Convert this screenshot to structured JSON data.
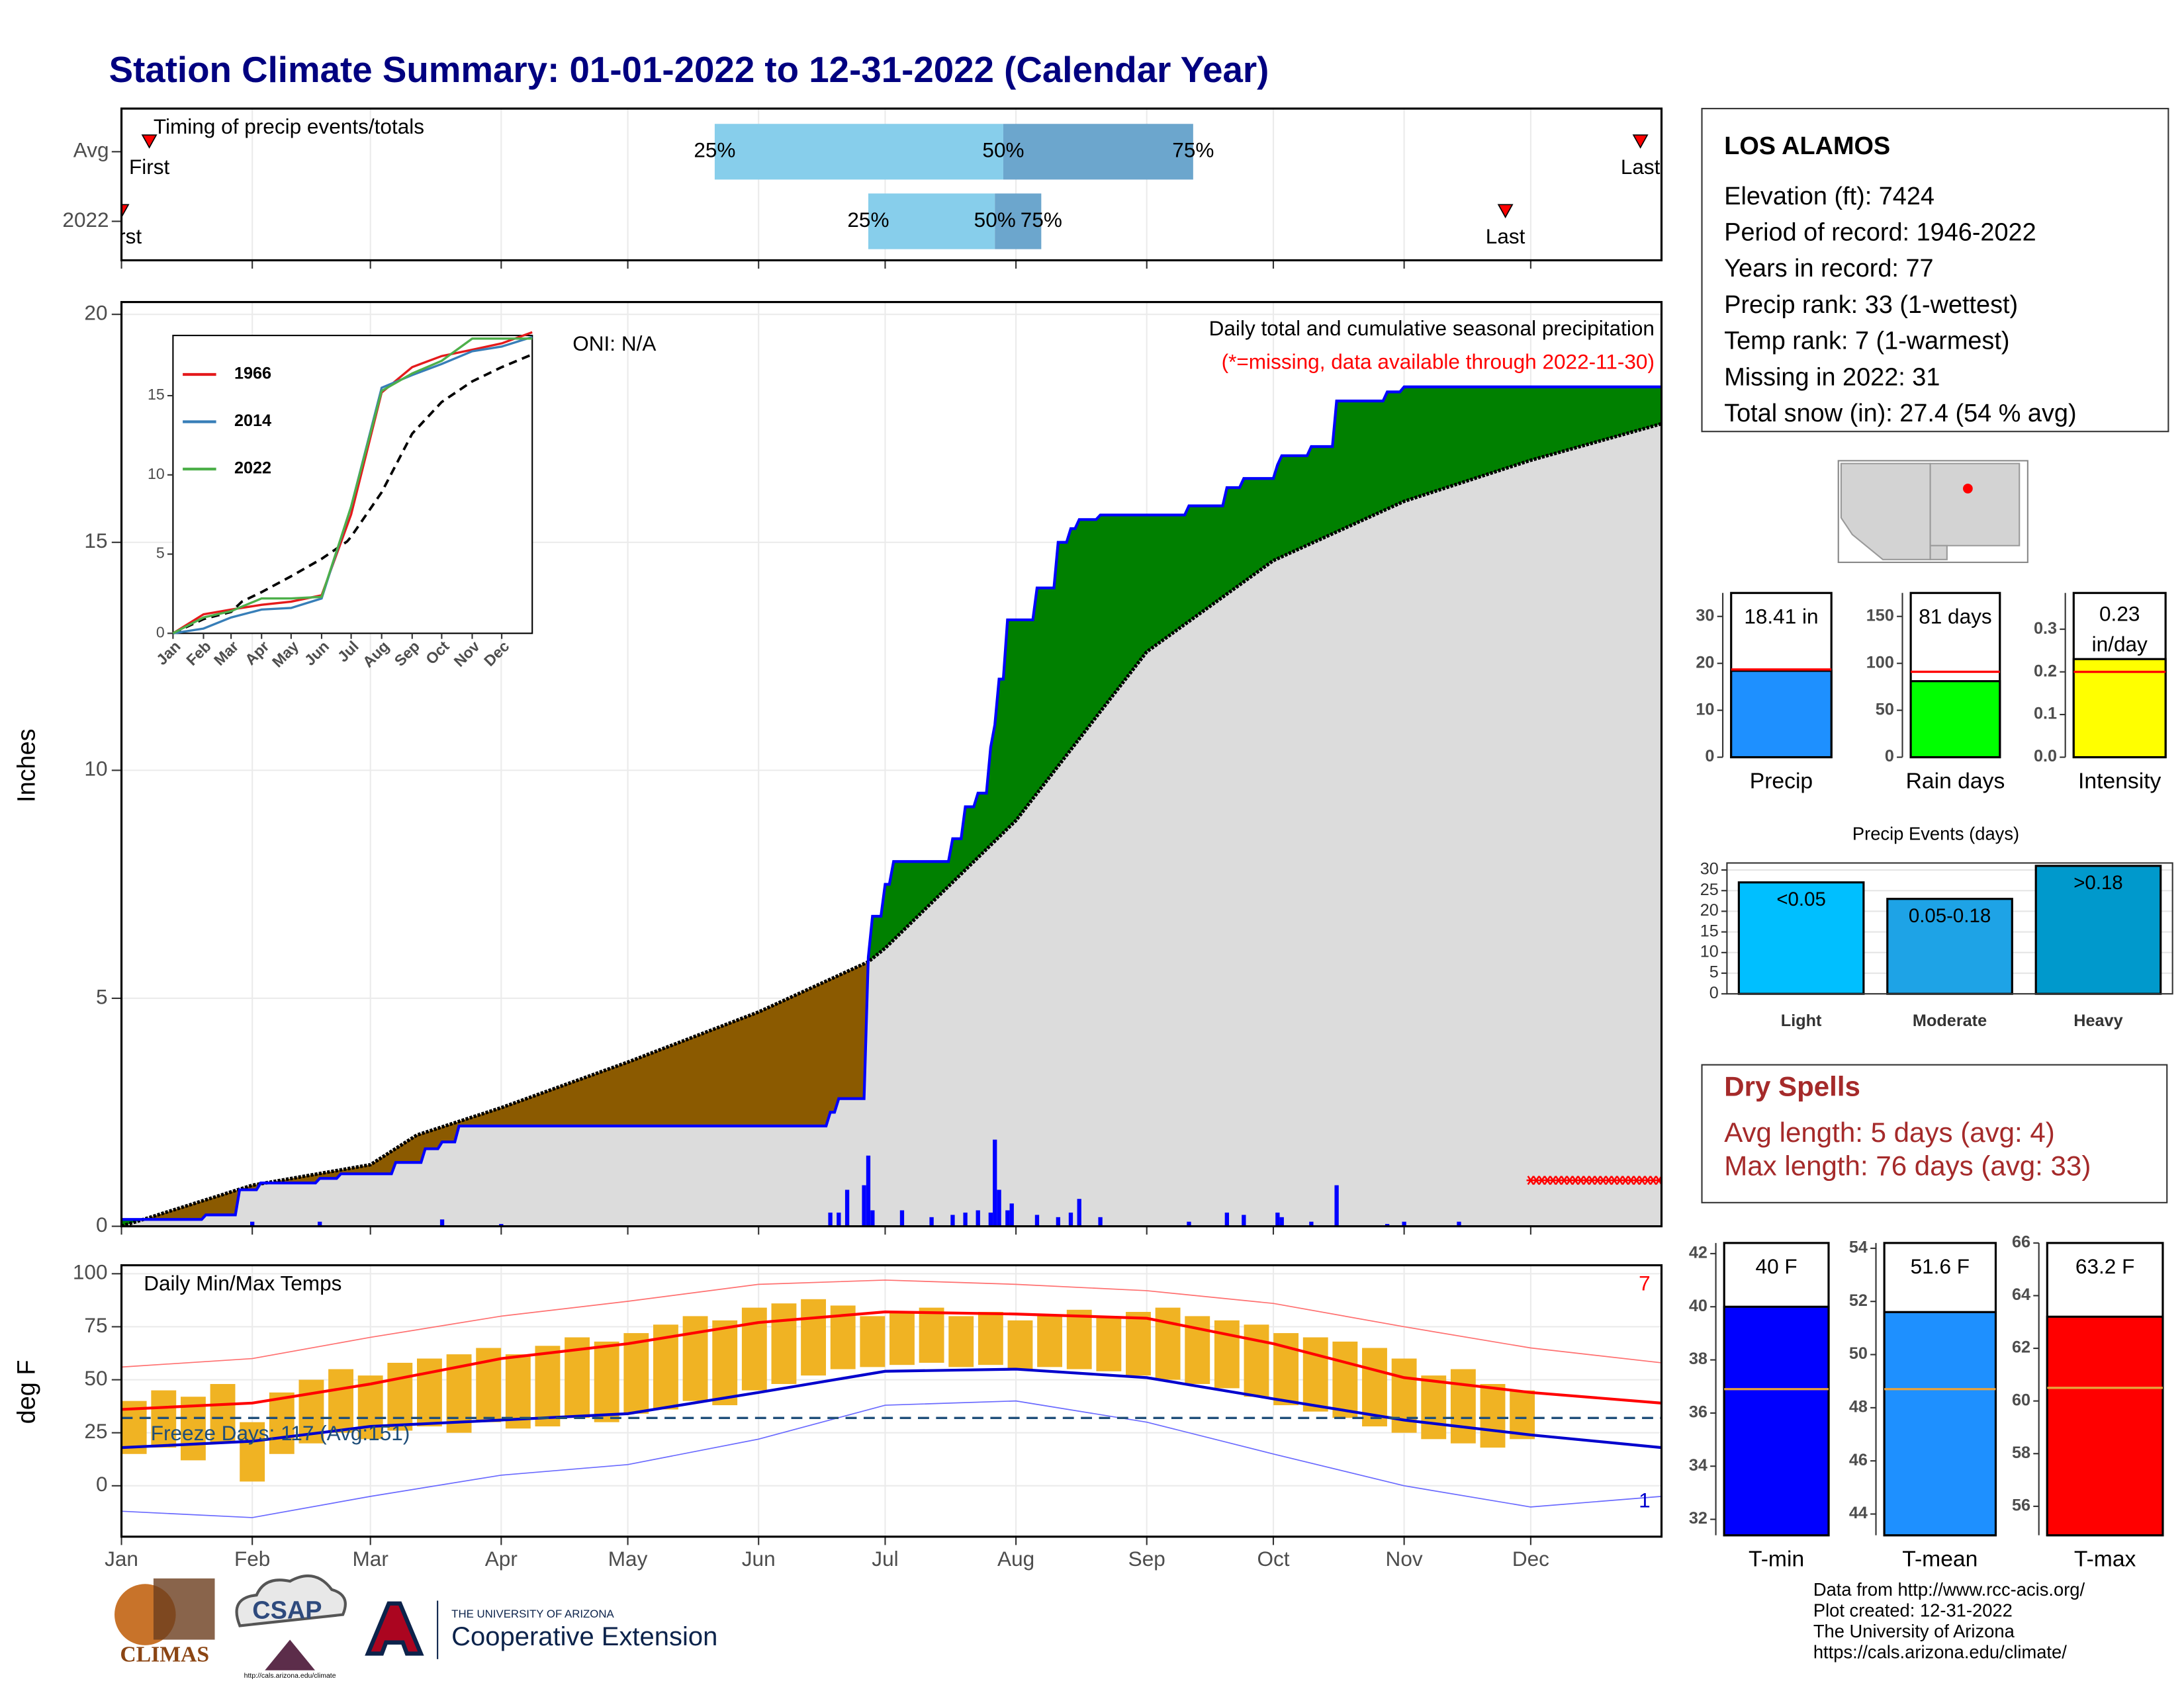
{
  "header": {
    "title": "Station Climate Summary: 01-01-2022 to 12-31-2022 (Calendar Year)"
  },
  "station": {
    "name": "LOS ALAMOS",
    "lines": [
      "Elevation (ft): 7424",
      "Period of record: 1946-2022",
      "Years in record: 77",
      "Precip rank: 33 (1-wettest)",
      "Temp rank: 7 (1-warmest)",
      "Missing in 2022: 31",
      "Total snow (in): 27.4 (54 % avg)"
    ]
  },
  "dry_spells": {
    "title": "Dry Spells",
    "lines": [
      "Avg length: 5 days (avg: 4)",
      "Max length: 76 days (avg: 33)"
    ]
  },
  "footer": {
    "logos": [
      "CLIMAS",
      "CSAP",
      "http://cals.arizona.edu/climate",
      "THE UNIVERSITY OF ARIZONA",
      "Cooperative Extension"
    ],
    "source": [
      "Data from http://www.rcc-acis.org/",
      "Plot created: 12-31-2022",
      "The University of Arizona",
      "https://cals.arizona.edu/climate/"
    ]
  },
  "chart_data": [
    {
      "type": "timing",
      "title": "Timing of precip events/totals",
      "xlim": [
        0,
        365
      ],
      "xticks": [
        0,
        31,
        59,
        90,
        120,
        151,
        181,
        212,
        243,
        273,
        304,
        334
      ],
      "rows": [
        {
          "label": "Avg",
          "first": 6.6,
          "quartiles": [
            140.6,
            209,
            254
          ],
          "last": 360
        },
        {
          "label": "2022",
          "first": 0,
          "quartiles": [
            177,
            207,
            218
          ],
          "last": 328
        }
      ],
      "quartile_labels": [
        "25%",
        "50%",
        "75%"
      ],
      "first_label": "First",
      "last_label": "Last",
      "colors": [
        "#87ceeb",
        "#6ca6cd"
      ],
      "marker_color": "#ff0000"
    },
    {
      "type": "cumulative",
      "ylabel": "Inches",
      "note": "Daily total and cumulative seasonal precipitation",
      "missing_note": "(*=missing, data available through 2022-11-30)",
      "oni": "ONI: N/A",
      "xlim": [
        0,
        365
      ],
      "ylim": [
        0,
        20.27
      ],
      "yticks": [
        0,
        5,
        10,
        15,
        20
      ],
      "xticks": [
        0,
        31,
        59,
        90,
        120,
        151,
        181,
        212,
        243,
        273,
        304,
        334
      ],
      "grid": true,
      "normal": {
        "x": [
          0,
          31,
          59,
          70,
          90,
          120,
          151,
          177,
          181,
          212,
          243,
          273,
          304,
          334,
          365
        ],
        "values": [
          0,
          0.9,
          1.35,
          2.0,
          2.6,
          3.6,
          4.7,
          5.8,
          6.1,
          8.9,
          12.6,
          14.6,
          15.9,
          16.8,
          17.6
        ]
      },
      "observed": {
        "x": [
          0,
          19,
          20,
          27,
          28,
          32,
          33,
          46,
          47,
          51,
          52,
          64,
          65,
          71,
          72,
          75,
          76,
          79,
          80,
          167,
          168,
          169,
          170,
          176,
          177,
          178,
          180,
          181,
          182,
          183,
          196,
          197,
          199,
          200,
          202,
          203,
          205,
          206,
          207,
          208,
          209,
          210,
          216,
          217,
          221,
          222,
          224,
          225,
          226,
          227,
          231,
          232,
          252,
          253,
          261,
          262,
          265,
          266,
          273,
          274,
          275,
          281,
          282,
          287,
          288,
          299,
          300,
          303,
          304,
          365
        ],
        "values": [
          0.15,
          0.15,
          0.25,
          0.25,
          0.8,
          0.8,
          0.95,
          0.95,
          1.05,
          1.05,
          1.15,
          1.15,
          1.4,
          1.4,
          1.7,
          1.7,
          1.85,
          1.85,
          2.2,
          2.2,
          2.5,
          2.5,
          2.8,
          2.8,
          5.9,
          6.8,
          6.8,
          7.5,
          7.5,
          8.0,
          8.0,
          8.5,
          8.5,
          9.2,
          9.2,
          9.5,
          9.5,
          10.5,
          11.0,
          12.0,
          12.0,
          13.3,
          13.3,
          14.0,
          14.0,
          15.0,
          15.0,
          15.3,
          15.3,
          15.5,
          15.5,
          15.6,
          15.6,
          15.8,
          15.8,
          16.2,
          16.2,
          16.4,
          16.4,
          16.7,
          16.9,
          16.9,
          17.1,
          17.1,
          18.1,
          18.1,
          18.3,
          18.3,
          18.41,
          18.41
        ]
      },
      "daily": {
        "x": [
          31,
          47,
          76,
          90,
          168,
          170,
          172,
          176,
          177,
          178,
          185,
          192,
          197,
          200,
          203,
          206,
          207,
          208,
          210,
          211,
          217,
          222,
          225,
          227,
          232,
          253,
          262,
          266,
          274,
          275,
          282,
          288,
          300,
          304,
          317
        ],
        "values": [
          0.1,
          0.1,
          0.15,
          0.05,
          0.3,
          0.3,
          0.8,
          0.9,
          1.55,
          0.35,
          0.35,
          0.2,
          0.25,
          0.3,
          0.35,
          0.3,
          1.9,
          0.8,
          0.35,
          0.5,
          0.25,
          0.2,
          0.3,
          0.6,
          0.2,
          0.1,
          0.3,
          0.25,
          0.3,
          0.2,
          0.1,
          0.9,
          0.05,
          0.1,
          0.1
        ]
      },
      "missing_range": [
        334,
        365
      ],
      "colors": {
        "deficit": "#8b5a00",
        "surplus": "#008000",
        "normal_fill": "#dcdcdc",
        "normal_line": "#000000",
        "observed": "#0000ff",
        "daily": "#0000ff",
        "missing": "#ff0000"
      }
    },
    {
      "type": "line",
      "xlim": [
        0,
        365
      ],
      "ylim": [
        0,
        18.8
      ],
      "yticks": [
        0,
        5,
        10,
        15
      ],
      "xticks": [
        {
          "value": 0,
          "label": "Jan"
        },
        {
          "value": 31,
          "label": "Feb"
        },
        {
          "value": 59,
          "label": "Mar"
        },
        {
          "value": 90,
          "label": "Apr"
        },
        {
          "value": 120,
          "label": "May"
        },
        {
          "value": 151,
          "label": "Jun"
        },
        {
          "value": 181,
          "label": "Jul"
        },
        {
          "value": 212,
          "label": "Aug"
        },
        {
          "value": 243,
          "label": "Sep"
        },
        {
          "value": 273,
          "label": "Oct"
        },
        {
          "value": 304,
          "label": "Nov"
        },
        {
          "value": 334,
          "label": "Dec"
        }
      ],
      "x": [
        0,
        31,
        59,
        90,
        120,
        151,
        181,
        212,
        243,
        273,
        304,
        334,
        365
      ],
      "series": [
        {
          "name": "1966",
          "color": "#e41a1c",
          "values": [
            0,
            1.2,
            1.5,
            1.8,
            2.0,
            2.4,
            7.5,
            15.2,
            16.8,
            17.5,
            17.9,
            18.3,
            19.0
          ]
        },
        {
          "name": "2014",
          "color": "#377eb8",
          "values": [
            0,
            0.3,
            1.0,
            1.5,
            1.6,
            2.2,
            8.0,
            15.5,
            16.3,
            17.0,
            17.8,
            18.1,
            18.7
          ]
        },
        {
          "name": "2022",
          "color": "#4daf4a",
          "values": [
            0,
            1.0,
            1.4,
            2.2,
            2.2,
            2.3,
            8.0,
            15.3,
            16.4,
            17.2,
            18.6,
            18.6,
            18.6
          ]
        }
      ]
    },
    {
      "type": "temperature",
      "title": "Daily Min/Max Temps",
      "ylabel": "deg F",
      "xlim": [
        0,
        365
      ],
      "ylim": [
        -24,
        104
      ],
      "yticks": [
        0,
        25,
        50,
        75,
        100
      ],
      "grid": true,
      "xticks": [
        {
          "value": 0,
          "label": "Jan"
        },
        {
          "value": 31,
          "label": "Feb"
        },
        {
          "value": 59,
          "label": "Mar"
        },
        {
          "value": 90,
          "label": "Apr"
        },
        {
          "value": 120,
          "label": "May"
        },
        {
          "value": 151,
          "label": "Jun"
        },
        {
          "value": 181,
          "label": "Jul"
        },
        {
          "value": 212,
          "label": "Aug"
        },
        {
          "value": 243,
          "label": "Sep"
        },
        {
          "value": 273,
          "label": "Oct"
        },
        {
          "value": 304,
          "label": "Nov"
        },
        {
          "value": 334,
          "label": "Dec"
        }
      ],
      "freeze": 32,
      "freeze_label": "Freeze Days: 117 (Avg:151)",
      "record_high_count": 7,
      "record_low_count": 1,
      "normal_x": [
        0,
        31,
        59,
        90,
        120,
        151,
        181,
        212,
        243,
        273,
        304,
        334,
        365
      ],
      "normal_max": [
        36,
        39,
        48,
        60,
        67,
        77,
        82,
        81,
        79,
        67,
        51,
        44,
        39
      ],
      "normal_min": [
        18,
        21,
        28,
        31,
        34,
        44,
        54,
        55,
        51,
        41,
        31,
        24,
        18
      ],
      "record_max": [
        56,
        60,
        70,
        80,
        87,
        95,
        97,
        95,
        92,
        86,
        75,
        65,
        58
      ],
      "record_min": [
        -12,
        -15,
        -5,
        5,
        10,
        22,
        38,
        40,
        30,
        15,
        0,
        -10,
        -5
      ],
      "obs_x": [
        3,
        10,
        17,
        24,
        31,
        38,
        45,
        52,
        59,
        66,
        73,
        80,
        87,
        94,
        101,
        108,
        115,
        122,
        129,
        136,
        143,
        150,
        157,
        164,
        171,
        178,
        185,
        192,
        199,
        206,
        213,
        220,
        227,
        234,
        241,
        248,
        255,
        262,
        269,
        276,
        283,
        290,
        297,
        304,
        311,
        318,
        325,
        332
      ],
      "obs_max": [
        40,
        45,
        42,
        48,
        30,
        44,
        50,
        55,
        52,
        58,
        60,
        62,
        65,
        62,
        66,
        70,
        68,
        72,
        76,
        80,
        78,
        84,
        86,
        88,
        85,
        80,
        82,
        84,
        80,
        82,
        78,
        80,
        83,
        80,
        82,
        84,
        80,
        78,
        76,
        72,
        70,
        68,
        65,
        60,
        52,
        55,
        48,
        45
      ],
      "obs_min": [
        15,
        18,
        12,
        20,
        2,
        15,
        20,
        25,
        22,
        26,
        28,
        25,
        30,
        27,
        28,
        32,
        30,
        34,
        36,
        40,
        38,
        45,
        48,
        52,
        55,
        56,
        57,
        58,
        56,
        57,
        55,
        56,
        55,
        54,
        52,
        50,
        48,
        46,
        42,
        38,
        35,
        32,
        28,
        25,
        22,
        20,
        18,
        22
      ],
      "colors": {
        "obs": "#f0b323",
        "normal_max": "#ff0000",
        "normal_min": "#0000cd",
        "record_max": "#ff7070",
        "record_min": "#6a6aff",
        "freeze": "#1f4e79",
        "high_count": "#ff0000",
        "low_count": "#0000cd"
      }
    },
    {
      "type": "summary_bar",
      "label": "Precip",
      "value": 18.41,
      "value_label": "18.41 in",
      "average": 18.7,
      "ylim": [
        0,
        35
      ],
      "yticks": [
        0,
        10,
        20,
        30
      ],
      "color": "#1e90ff",
      "average_color": "#ff0000"
    },
    {
      "type": "summary_bar",
      "label": "Rain days",
      "value": 81,
      "value_label": "81 days",
      "average": 91,
      "ylim": [
        0,
        175
      ],
      "yticks": [
        0,
        50,
        100,
        150
      ],
      "color": "#00ff00",
      "average_color": "#ff0000"
    },
    {
      "type": "summary_bar",
      "label": "Intensity",
      "value": 0.23,
      "value_label": [
        "0.23",
        "in/day"
      ],
      "average": 0.2,
      "ylim": [
        0,
        0.385
      ],
      "yticks": [
        {
          "value": 0,
          "label": "0.0"
        },
        0.1,
        0.2,
        0.3
      ],
      "color": "#ffff00",
      "average_color": "#ff0000"
    },
    {
      "type": "bar",
      "title": "Precip Events (days)",
      "categories": [
        "Light",
        "Moderate",
        "Heavy"
      ],
      "values": [
        27,
        23,
        31
      ],
      "thresholds": [
        "<0.05",
        "0.05-0.18",
        ">0.18"
      ],
      "colors": [
        "#00bfff",
        "#1ea3e6",
        "#0099cc"
      ],
      "ylim": [
        0,
        31.7
      ],
      "yticks": [
        0,
        5,
        10,
        15,
        20,
        25,
        30
      ],
      "grid": true
    },
    {
      "type": "summary_bar",
      "label": "T-min",
      "value": 40,
      "value_label": "40 F",
      "average": 36.9,
      "ylim": [
        31.4,
        42.4
      ],
      "yticks": [
        32,
        34,
        36,
        38,
        40,
        42
      ],
      "color": "#0000ff",
      "average_color": "#e8a33d"
    },
    {
      "type": "summary_bar",
      "label": "T-mean",
      "value": 51.6,
      "value_label": "51.6 F",
      "average": 48.7,
      "ylim": [
        43.2,
        54.2
      ],
      "yticks": [
        44,
        46,
        48,
        50,
        52,
        54
      ],
      "color": "#1e90ff",
      "average_color": "#e8a33d"
    },
    {
      "type": "summary_bar",
      "label": "T-max",
      "value": 63.2,
      "value_label": "63.2 F",
      "average": 60.5,
      "ylim": [
        54.9,
        66
      ],
      "yticks": [
        56,
        58,
        60,
        62,
        64,
        66
      ],
      "color": "#ff0000",
      "average_color": "#e8a33d"
    }
  ]
}
